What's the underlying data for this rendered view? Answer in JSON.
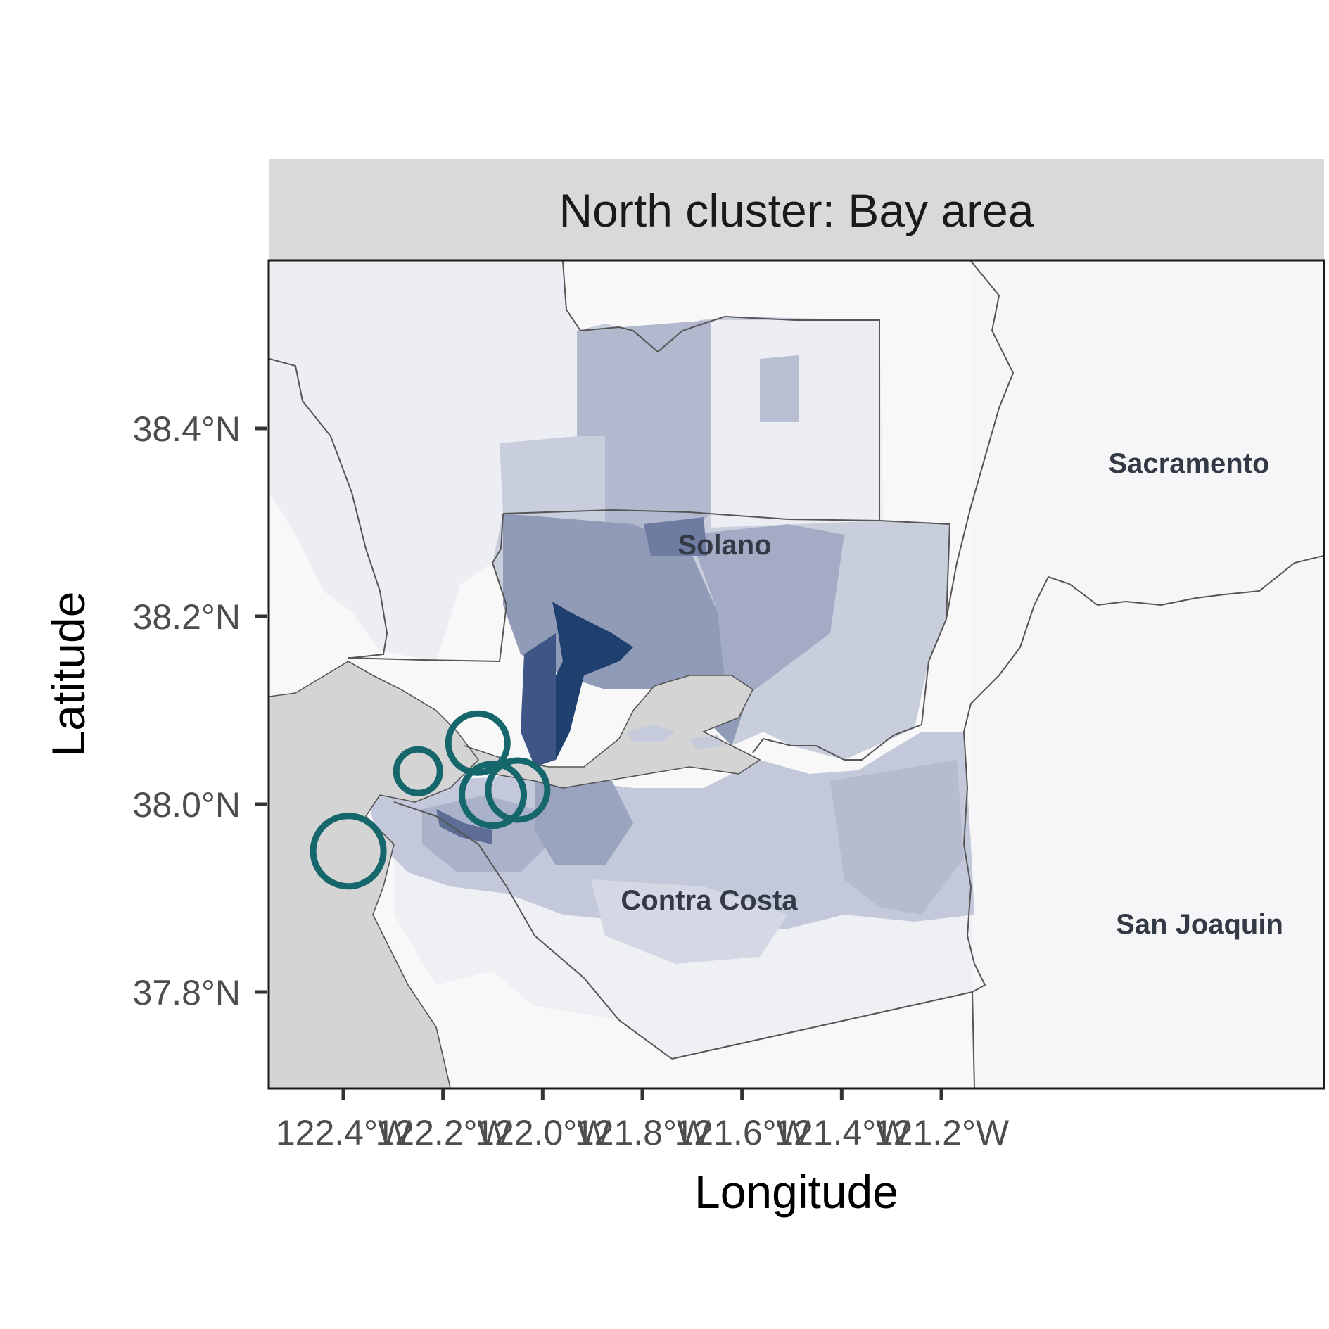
{
  "panel": {
    "strip_title": "North cluster: Bay area"
  },
  "axes": {
    "xlabel": "Longitude",
    "ylabel": "Latitude",
    "x_ticks": [
      "122.4°W",
      "122.2°W",
      "122.0°W",
      "121.8°W",
      "121.6°W",
      "121.4°W",
      "121.2°W"
    ],
    "y_ticks": [
      "38.4°N",
      "38.2°N",
      "38.0°N",
      "37.8°N"
    ]
  },
  "county_labels": [
    "Solano",
    "Sacramento",
    "Contra Costa",
    "San Joaquin"
  ],
  "colors": {
    "choropleth_dark": "#1f3f6e",
    "choropleth_mid": "#8e9bb8",
    "choropleth_light": "#c5cbdb",
    "water": "#d4d4d4",
    "circle_stroke": "#15676b",
    "strip_fill": "#d9d9d9",
    "border": "#555555"
  },
  "chart_data": {
    "type": "map",
    "x_axis": {
      "range": [
        "122.5°W",
        "121.1°W"
      ],
      "ticks": [
        -122.4,
        -122.2,
        -122.0,
        -121.8,
        -121.6,
        -121.4,
        -121.2
      ]
    },
    "y_axis": {
      "range": [
        "37.7°N",
        "38.58°N"
      ],
      "ticks": [
        38.4,
        38.2,
        38.0,
        37.8
      ]
    },
    "grid": false,
    "highlight_circles": [
      {
        "lon": -122.39,
        "lat": 37.95
      },
      {
        "lon": -122.25,
        "lat": 38.035
      },
      {
        "lon": -122.13,
        "lat": 38.065
      },
      {
        "lon": -122.1,
        "lat": 38.01
      },
      {
        "lon": -122.05,
        "lat": 38.015
      }
    ]
  }
}
